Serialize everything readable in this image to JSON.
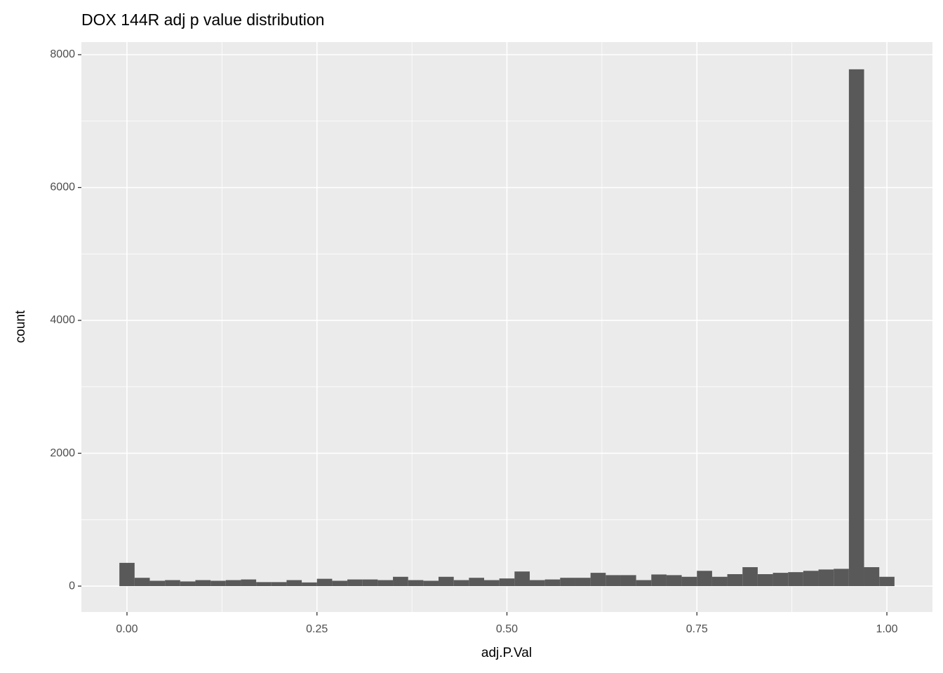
{
  "chart_data": {
    "type": "histogram",
    "title": "DOX 144R adj p value distribution",
    "x_label": "adj.P.Val",
    "y_label": "count",
    "bins": [
      -0.01,
      0.01,
      0.03,
      0.05,
      0.07,
      0.09,
      0.11,
      0.13,
      0.15,
      0.17,
      0.19,
      0.21,
      0.23,
      0.25,
      0.27,
      0.29,
      0.31,
      0.33,
      0.35,
      0.37,
      0.39,
      0.41,
      0.43,
      0.45,
      0.47,
      0.49,
      0.51,
      0.53,
      0.55,
      0.57,
      0.59,
      0.61,
      0.63,
      0.65,
      0.67,
      0.69,
      0.71,
      0.73,
      0.75,
      0.77,
      0.79,
      0.81,
      0.83,
      0.85,
      0.87,
      0.89,
      0.91,
      0.93,
      0.95,
      0.97,
      0.99,
      1.01
    ],
    "values": [
      350,
      125,
      80,
      90,
      70,
      90,
      80,
      90,
      100,
      60,
      60,
      90,
      55,
      110,
      80,
      100,
      100,
      90,
      140,
      90,
      80,
      140,
      90,
      125,
      90,
      115,
      220,
      90,
      100,
      125,
      125,
      200,
      165,
      165,
      90,
      175,
      165,
      140,
      230,
      140,
      180,
      285,
      180,
      200,
      210,
      230,
      250,
      260,
      7780,
      285,
      140
    ],
    "color": "#595959",
    "xlim": [
      -0.06,
      1.06
    ],
    "ylim": [
      -390,
      8190
    ],
    "xticks": [
      {
        "value": 0,
        "label": "0.00"
      },
      {
        "value": 0.25,
        "label": "0.25"
      },
      {
        "value": 0.5,
        "label": "0.50"
      },
      {
        "value": 0.75,
        "label": "0.75"
      },
      {
        "value": 1,
        "label": "1.00"
      }
    ],
    "yticks": [
      0,
      2000,
      4000,
      6000,
      8000
    ],
    "x_minor_ticks": [
      0.125,
      0.375,
      0.625,
      0.875
    ],
    "y_minor_ticks": [
      1000,
      3000,
      5000,
      7000
    ],
    "grid": true
  }
}
